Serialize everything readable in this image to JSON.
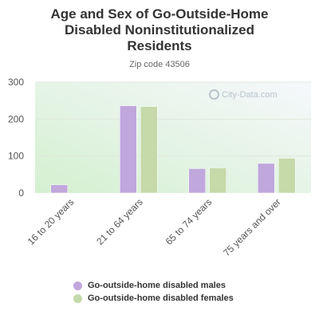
{
  "chart_data": {
    "type": "bar",
    "title": "Age and Sex of Go-Outside-Home Disabled Noninstitutionalized Residents",
    "title_lines": [
      "Age and Sex of Go-Outside-Home",
      "Disabled Noninstitutionalized",
      "Residents"
    ],
    "subtitle": "Zip code 43506",
    "categories": [
      "16 to 20 years",
      "21 to 64 years",
      "65 to 74 years",
      "75 years and over"
    ],
    "series": [
      {
        "name": "Go-outside-home disabled males",
        "color": "#c0a7dc",
        "values": [
          22,
          236,
          66,
          80
        ]
      },
      {
        "name": "Go-outside-home disabled females",
        "color": "#c5d9a9",
        "values": [
          0,
          234,
          68,
          94
        ]
      }
    ],
    "ylim": [
      0,
      300
    ],
    "yticks": [
      0,
      100,
      200,
      300
    ],
    "xlabel": "",
    "ylabel": "",
    "legend_position": "bottom",
    "grid": true
  },
  "watermark": "City-Data.com"
}
